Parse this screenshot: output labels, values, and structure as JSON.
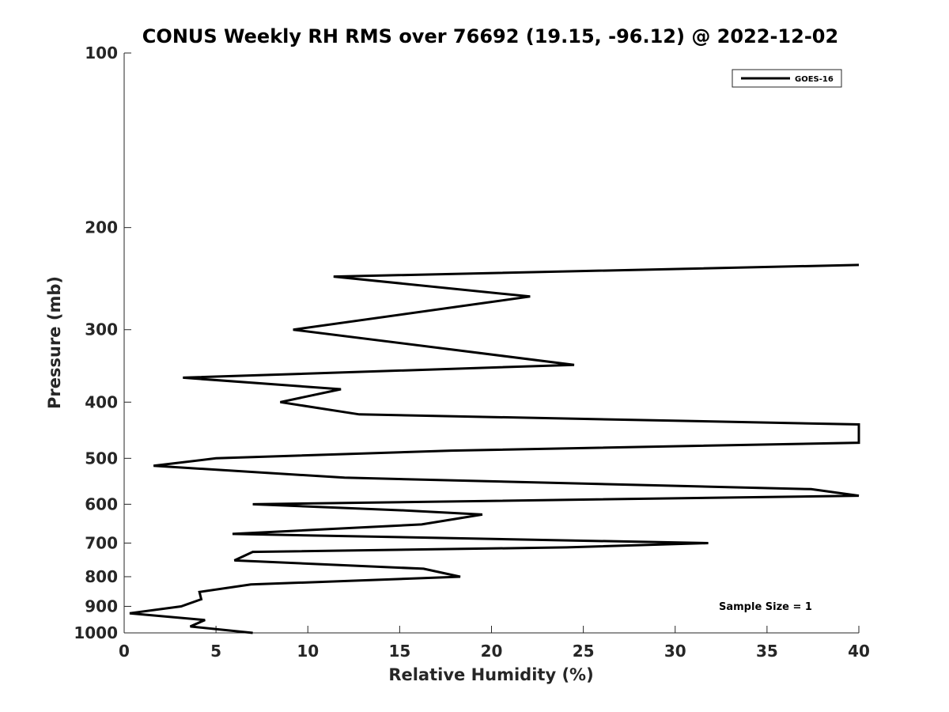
{
  "chart_data": {
    "type": "line",
    "title": "CONUS Weekly RH RMS over 76692 (19.15, -96.12) @ 2022-12-02",
    "xlabel": "Relative Humidity (%)",
    "ylabel": "Pressure (mb)",
    "xlim": [
      0,
      40
    ],
    "ylim": [
      1000,
      100
    ],
    "y_scale": "log",
    "y_reversed": true,
    "grid": false,
    "legend_position": "top-right",
    "x_ticks": [
      "0",
      "5",
      "10",
      "15",
      "20",
      "25",
      "30",
      "35",
      "40"
    ],
    "y_ticks": [
      "100",
      "200",
      "300",
      "400",
      "500",
      "600",
      "700",
      "800",
      "900",
      "1000"
    ],
    "annotation": "Sample Size = 1",
    "series": [
      {
        "name": "GOES-16",
        "color": "#000000",
        "points": [
          {
            "x": 7.0,
            "y": 1000
          },
          {
            "x": 3.6,
            "y": 975
          },
          {
            "x": 4.4,
            "y": 950
          },
          {
            "x": 0.3,
            "y": 925
          },
          {
            "x": 3.1,
            "y": 900
          },
          {
            "x": 4.2,
            "y": 875
          },
          {
            "x": 4.1,
            "y": 850
          },
          {
            "x": 6.9,
            "y": 825
          },
          {
            "x": 18.3,
            "y": 800
          },
          {
            "x": 16.3,
            "y": 775
          },
          {
            "x": 6.0,
            "y": 750
          },
          {
            "x": 7.0,
            "y": 725
          },
          {
            "x": 24.1,
            "y": 712
          },
          {
            "x": 31.8,
            "y": 700
          },
          {
            "x": 5.9,
            "y": 675
          },
          {
            "x": 16.2,
            "y": 650
          },
          {
            "x": 19.5,
            "y": 625
          },
          {
            "x": 15.3,
            "y": 615
          },
          {
            "x": 7.0,
            "y": 600
          },
          {
            "x": 40,
            "y": 580
          },
          {
            "x": 37.4,
            "y": 565
          },
          {
            "x": 12.0,
            "y": 540
          },
          {
            "x": 1.6,
            "y": 515
          },
          {
            "x": 5.0,
            "y": 500
          },
          {
            "x": 17.8,
            "y": 485
          },
          {
            "x": 40,
            "y": 470
          },
          {
            "x": 40,
            "y": 437
          },
          {
            "x": 12.8,
            "y": 420
          },
          {
            "x": 8.5,
            "y": 400
          },
          {
            "x": 11.8,
            "y": 380
          },
          {
            "x": 3.2,
            "y": 363
          },
          {
            "x": 24.5,
            "y": 345
          },
          {
            "x": 9.2,
            "y": 300
          },
          {
            "x": 22.1,
            "y": 263
          },
          {
            "x": 11.4,
            "y": 243
          },
          {
            "x": 40,
            "y": 232
          }
        ]
      }
    ]
  }
}
